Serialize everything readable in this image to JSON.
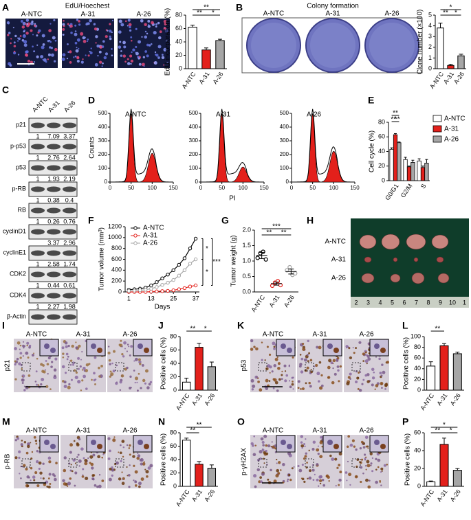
{
  "A": {
    "letter": "A",
    "title": "EdU/Hoechest",
    "image_labels": [
      "A-NTC",
      "A-31",
      "A-26"
    ],
    "chart": {
      "type": "bar",
      "ylabel": "EdU incorporation (%)",
      "categories": [
        "A-NTC",
        "A-31",
        "A-26"
      ],
      "values": [
        62,
        28,
        42
      ],
      "errors": [
        3,
        3,
        2
      ],
      "colors": [
        "#ffffff",
        "#e3201b",
        "#a6a6a6"
      ],
      "ylim": [
        0,
        80
      ],
      "yticks": [
        0,
        20,
        40,
        60,
        80
      ],
      "significance": [
        "**",
        "**",
        "*"
      ]
    }
  },
  "B": {
    "letter": "B",
    "title": "Colony formation",
    "image_labels": [
      "A-NTC",
      "A-31",
      "A-26"
    ],
    "chart": {
      "type": "bar",
      "ylabel": "Clone number (×100)",
      "categories": [
        "A-NTC",
        "A-31",
        "A-26"
      ],
      "values": [
        3.8,
        0.3,
        1.2
      ],
      "errors": [
        0.45,
        0.1,
        0.15
      ],
      "colors": [
        "#ffffff",
        "#e3201b",
        "#a6a6a6"
      ],
      "ylim": [
        0,
        5
      ],
      "yticks": [
        0,
        1,
        2,
        3,
        4,
        5
      ],
      "significance": [
        "*",
        "**",
        "*"
      ]
    }
  },
  "C": {
    "letter": "C",
    "lanes": [
      "A-NTC",
      "A-31",
      "A-26"
    ],
    "rows": [
      {
        "protein": "p21",
        "ratios": [
          1,
          7.09,
          3.37
        ]
      },
      {
        "protein": "p-p53",
        "ratios": [
          1,
          2.76,
          2.64
        ]
      },
      {
        "protein": "p53",
        "ratios": [
          1,
          1.93,
          2.19
        ]
      },
      {
        "protein": "p-RB",
        "ratios": [
          1,
          0.38,
          0.4
        ]
      },
      {
        "protein": "RB",
        "ratios": [
          1,
          0.26,
          0.76
        ]
      },
      {
        "protein": "cyclinD1",
        "ratios": [
          null,
          3.37,
          2.96
        ]
      },
      {
        "protein": "cyclinE1",
        "ratios": [
          1,
          2.58,
          1.74
        ]
      },
      {
        "protein": "CDK2",
        "ratios": [
          1,
          0.44,
          0.61
        ]
      },
      {
        "protein": "CDK4",
        "ratios": [
          1,
          2.27,
          1.98
        ]
      },
      {
        "protein": "β-Actin"
      }
    ]
  },
  "D": {
    "letter": "D",
    "histograms": [
      "A-NTC",
      "A-31",
      "A-26"
    ],
    "xlabel": "PI",
    "ylabel": "Counts",
    "xlim": [
      0,
      150
    ],
    "ylim": [
      0,
      500
    ],
    "xticks": [
      0,
      50,
      100,
      150
    ],
    "yticks": [
      0,
      100,
      200,
      300,
      400,
      500
    ]
  },
  "E": {
    "letter": "E",
    "chart": {
      "type": "grouped_bar",
      "ylabel": "Cell cycle (%)",
      "categories": [
        "G0/G1",
        "G2/M",
        "S"
      ],
      "ylim": [
        0,
        80
      ],
      "yticks": [
        0,
        20,
        40,
        60,
        80
      ],
      "significance": [
        "**",
        "**",
        "**"
      ],
      "series": [
        {
          "name": "A-NTC",
          "color": "#ffffff",
          "values": [
            43,
            29,
            27
          ],
          "errors": [
            2,
            3,
            3
          ]
        },
        {
          "name": "A-31",
          "color": "#e3201b",
          "values": [
            63,
            19,
            18
          ],
          "errors": [
            1.5,
            1,
            2
          ]
        },
        {
          "name": "A-26",
          "color": "#a6a6a6",
          "values": [
            52,
            25,
            24
          ],
          "errors": [
            1,
            3,
            5
          ]
        }
      ]
    }
  },
  "F": {
    "letter": "F",
    "chart": {
      "type": "line",
      "xlabel": "Days",
      "ylabel": "Tumor volume (mm³)",
      "x": [
        1,
        4,
        7,
        10,
        13,
        16,
        19,
        22,
        25,
        28,
        31,
        34,
        37
      ],
      "xlim": [
        -1,
        39
      ],
      "xticks": [
        1,
        13,
        25,
        37
      ],
      "ylim": [
        0,
        1200
      ],
      "yticks": [
        0,
        200,
        400,
        600,
        800,
        1000,
        1200
      ],
      "significance": [
        "*",
        "*",
        "***"
      ],
      "series": [
        {
          "name": "A-NTC",
          "color": "#000000",
          "values": [
            40,
            50,
            60,
            80,
            120,
            180,
            250,
            320,
            400,
            500,
            620,
            800,
            980
          ]
        },
        {
          "name": "A-31",
          "color": "#e3201b",
          "values": [
            0,
            0,
            0,
            0,
            5,
            10,
            15,
            20,
            30,
            50,
            70,
            100,
            120
          ]
        },
        {
          "name": "A-26",
          "color": "#a6a6a6",
          "values": [
            20,
            25,
            30,
            40,
            60,
            90,
            130,
            170,
            220,
            300,
            400,
            520,
            600
          ]
        }
      ]
    }
  },
  "G": {
    "letter": "G",
    "chart": {
      "type": "scatter",
      "ylabel": "Tumor weight (g)",
      "categories": [
        "A-NTC",
        "A-31",
        "A-26"
      ],
      "colors": [
        "#000000",
        "#e3201b",
        "#a6a6a6"
      ],
      "ylim": [
        0,
        2
      ],
      "yticks": [
        {
          "value": 0,
          "label": "0.0"
        },
        {
          "value": 0.5,
          "label": "0.5"
        },
        {
          "value": 1,
          "label": "1.0"
        },
        {
          "value": 1.5,
          "label": "1.5"
        },
        {
          "value": 2,
          "label": "2.0"
        }
      ],
      "points": [
        [
          1.1,
          1.25,
          1.3,
          1.05
        ],
        [
          0.2,
          0.3,
          0.35,
          0.22
        ],
        [
          0.7,
          0.8,
          0.55,
          0.6
        ]
      ],
      "means": [
        1.18,
        0.27,
        0.66
      ],
      "errors": [
        0.1,
        0.05,
        0.08
      ],
      "significance": [
        "***",
        "**",
        "**"
      ]
    }
  },
  "H": {
    "letter": "H",
    "row_labels": [
      "A-NTC",
      "A-31",
      "A-26"
    ],
    "ruler": [
      "2",
      "3",
      "4",
      "5",
      "6",
      "7",
      "8",
      "9",
      "10",
      "1"
    ]
  },
  "I": {
    "letter": "I",
    "stain": "p21",
    "image_labels": [
      "A-NTC",
      "A-31",
      "A-26"
    ]
  },
  "J": {
    "letter": "J",
    "chart": {
      "type": "bar",
      "ylabel": "Positive cells (%)",
      "categories": [
        "A-NTC",
        "A-31",
        "A-26"
      ],
      "values": [
        12,
        64,
        35
      ],
      "errors": [
        6,
        6,
        7
      ],
      "colors": [
        "#ffffff",
        "#e3201b",
        "#a6a6a6"
      ],
      "ylim": [
        0,
        80
      ],
      "yticks": [
        0,
        20,
        40,
        60,
        80
      ],
      "significance": [
        "**",
        "*"
      ]
    }
  },
  "K": {
    "letter": "K",
    "stain": "p53",
    "image_labels": [
      "A-NTC",
      "A-31",
      "A-26"
    ]
  },
  "L": {
    "letter": "L",
    "chart": {
      "type": "bar",
      "ylabel": "Positive cells (%)",
      "categories": [
        "A-NTC",
        "A-31",
        "A-26"
      ],
      "values": [
        45,
        83,
        68
      ],
      "errors": [
        8,
        4,
        3
      ],
      "colors": [
        "#ffffff",
        "#e3201b",
        "#a6a6a6"
      ],
      "ylim": [
        0,
        100
      ],
      "yticks": [
        0,
        20,
        40,
        60,
        80,
        100
      ],
      "significance": [
        "**"
      ]
    }
  },
  "M": {
    "letter": "M",
    "stain": "p-RB",
    "image_labels": [
      "A-NTC",
      "A-31",
      "A-26"
    ]
  },
  "N": {
    "letter": "N",
    "chart": {
      "type": "bar",
      "ylabel": "Positive cells (%)",
      "categories": [
        "A-NTC",
        "A-31",
        "A-26"
      ],
      "values": [
        69,
        33,
        27
      ],
      "errors": [
        3,
        4,
        5
      ],
      "colors": [
        "#ffffff",
        "#e3201b",
        "#a6a6a6"
      ],
      "ylim": [
        0,
        80
      ],
      "yticks": [
        0,
        20,
        40,
        60,
        80
      ],
      "significance": [
        "**",
        "**"
      ]
    }
  },
  "O": {
    "letter": "O",
    "stain": "p-γH2AX",
    "image_labels": [
      "A-NTC",
      "A-31",
      "A-26"
    ]
  },
  "P": {
    "letter": "P",
    "chart": {
      "type": "bar",
      "ylabel": "Positive cells (%)",
      "categories": [
        "A-NTC",
        "A-31",
        "A-26"
      ],
      "values": [
        5,
        47,
        18
      ],
      "errors": [
        1,
        7,
        2
      ],
      "colors": [
        "#ffffff",
        "#e3201b",
        "#a6a6a6"
      ],
      "ylim": [
        0,
        60
      ],
      "yticks": [
        0,
        20,
        40,
        60
      ],
      "significance": [
        "*",
        "**",
        "*"
      ]
    }
  }
}
